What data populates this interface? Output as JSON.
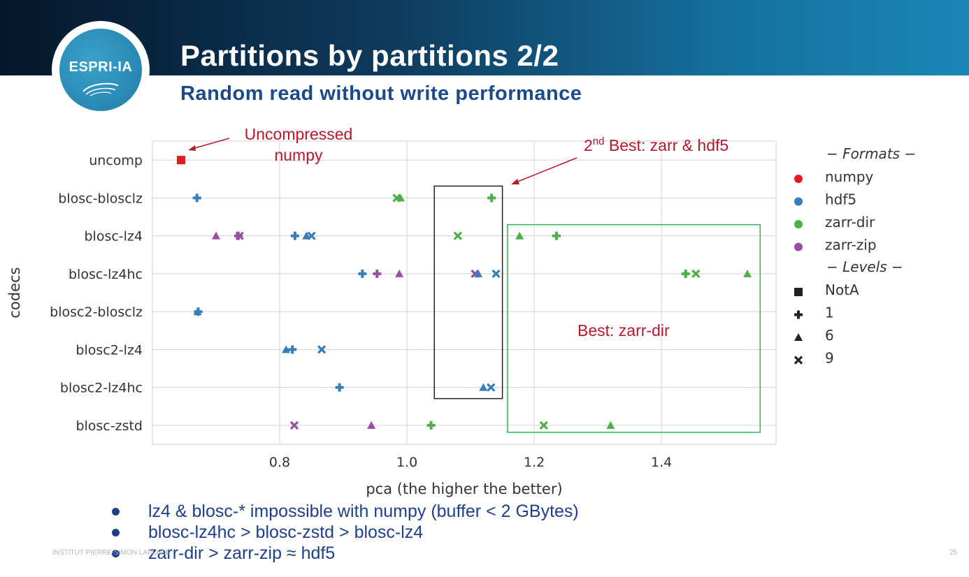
{
  "slide": {
    "title": "Partitions by partitions 2/2",
    "subtitle": "Random read without write performance",
    "logo_text": "ESPRI-IA",
    "footer_left": "INSTITUT PIERRE-SIMON LAPLACE",
    "page_number": "25"
  },
  "colors": {
    "numpy": "#e41a1c",
    "hdf5": "#377eb8",
    "zarr-dir": "#4daf4a",
    "zarr-zip": "#984ea3",
    "annotation": "#b5192b",
    "best_box": "#2db84a",
    "second_box": "#222222"
  },
  "annotations": {
    "uncompressed": "Uncompressed\nnumpy",
    "second_best_pre": "2",
    "second_best_sup": "nd",
    "second_best_post": " Best: zarr & hdf5",
    "best": "Best: zarr-dir"
  },
  "chart_data": {
    "type": "scatter",
    "xlabel": "pca (the higher the better)",
    "ylabel": "codecs",
    "xlim": [
      0.6,
      1.58
    ],
    "xticks": [
      0.8,
      1.0,
      1.2,
      1.4
    ],
    "xtick_labels": [
      "0.8",
      "1.0",
      "1.2",
      "1.4"
    ],
    "categories": [
      "uncomp",
      "blosc-blosclz",
      "blosc-lz4",
      "blosc-lz4hc",
      "blosc2-blosclz",
      "blosc2-lz4",
      "blosc2-lz4hc",
      "blosc-zstd"
    ],
    "grid": true,
    "legend_placement": "right, outside",
    "legend": {
      "formats_title": "− Formats −",
      "formats": [
        "numpy",
        "hdf5",
        "zarr-dir",
        "zarr-zip"
      ],
      "levels_title": "− Levels −",
      "levels": [
        {
          "label": "NotA",
          "marker": "square"
        },
        {
          "label": "1",
          "marker": "plus"
        },
        {
          "label": "6",
          "marker": "triangle"
        },
        {
          "label": "9",
          "marker": "x"
        }
      ]
    },
    "points": [
      {
        "codec": "uncomp",
        "format": "numpy",
        "level": "NotA",
        "x": 0.645
      },
      {
        "codec": "blosc-blosclz",
        "format": "hdf5",
        "level": "1",
        "x": 0.67
      },
      {
        "codec": "blosc-blosclz",
        "format": "zarr-dir",
        "level": "9",
        "x": 0.984
      },
      {
        "codec": "blosc-blosclz",
        "format": "zarr-dir",
        "level": "6",
        "x": 0.99
      },
      {
        "codec": "blosc-blosclz",
        "format": "zarr-dir",
        "level": "1",
        "x": 1.133
      },
      {
        "codec": "blosc-lz4",
        "format": "zarr-zip",
        "level": "6",
        "x": 0.7
      },
      {
        "codec": "blosc-lz4",
        "format": "zarr-zip",
        "level": "1",
        "x": 0.735
      },
      {
        "codec": "blosc-lz4",
        "format": "zarr-zip",
        "level": "9",
        "x": 0.737
      },
      {
        "codec": "blosc-lz4",
        "format": "hdf5",
        "level": "1",
        "x": 0.824
      },
      {
        "codec": "blosc-lz4",
        "format": "hdf5",
        "level": "6",
        "x": 0.842
      },
      {
        "codec": "blosc-lz4",
        "format": "hdf5",
        "level": "9",
        "x": 0.85
      },
      {
        "codec": "blosc-lz4",
        "format": "zarr-dir",
        "level": "9",
        "x": 1.08
      },
      {
        "codec": "blosc-lz4",
        "format": "zarr-dir",
        "level": "6",
        "x": 1.177
      },
      {
        "codec": "blosc-lz4",
        "format": "zarr-dir",
        "level": "1",
        "x": 1.235
      },
      {
        "codec": "blosc-lz4hc",
        "format": "hdf5",
        "level": "1",
        "x": 0.93
      },
      {
        "codec": "blosc-lz4hc",
        "format": "zarr-zip",
        "level": "1",
        "x": 0.953
      },
      {
        "codec": "blosc-lz4hc",
        "format": "zarr-zip",
        "level": "6",
        "x": 0.988
      },
      {
        "codec": "blosc-lz4hc",
        "format": "zarr-zip",
        "level": "9",
        "x": 1.107
      },
      {
        "codec": "blosc-lz4hc",
        "format": "hdf5",
        "level": "6",
        "x": 1.112
      },
      {
        "codec": "blosc-lz4hc",
        "format": "hdf5",
        "level": "9",
        "x": 1.14
      },
      {
        "codec": "blosc-lz4hc",
        "format": "zarr-dir",
        "level": "1",
        "x": 1.438
      },
      {
        "codec": "blosc-lz4hc",
        "format": "zarr-dir",
        "level": "9",
        "x": 1.454
      },
      {
        "codec": "blosc-lz4hc",
        "format": "zarr-dir",
        "level": "6",
        "x": 1.535
      },
      {
        "codec": "blosc2-blosclz",
        "format": "hdf5",
        "level": "6",
        "x": 0.671
      },
      {
        "codec": "blosc2-blosclz",
        "format": "hdf5",
        "level": "1",
        "x": 0.672
      },
      {
        "codec": "blosc2-lz4",
        "format": "hdf5",
        "level": "6",
        "x": 0.81
      },
      {
        "codec": "blosc2-lz4",
        "format": "hdf5",
        "level": "1",
        "x": 0.82
      },
      {
        "codec": "blosc2-lz4",
        "format": "hdf5",
        "level": "9",
        "x": 0.866
      },
      {
        "codec": "blosc2-lz4hc",
        "format": "hdf5",
        "level": "1",
        "x": 0.894
      },
      {
        "codec": "blosc2-lz4hc",
        "format": "hdf5",
        "level": "6",
        "x": 1.12
      },
      {
        "codec": "blosc2-lz4hc",
        "format": "hdf5",
        "level": "9",
        "x": 1.132
      },
      {
        "codec": "blosc-zstd",
        "format": "zarr-zip",
        "level": "9",
        "x": 0.823
      },
      {
        "codec": "blosc-zstd",
        "format": "zarr-zip",
        "level": "6",
        "x": 0.944
      },
      {
        "codec": "blosc-zstd",
        "format": "zarr-dir",
        "level": "1",
        "x": 1.038
      },
      {
        "codec": "blosc-zstd",
        "format": "zarr-dir",
        "level": "9",
        "x": 1.215
      },
      {
        "codec": "blosc-zstd",
        "format": "zarr-dir",
        "level": "6",
        "x": 1.32
      }
    ]
  },
  "bullets": [
    "lz4 & blosc-* impossible with numpy (buffer < 2 GBytes)",
    "blosc-lz4hc > blosc-zstd > blosc-lz4",
    "zarr-dir > zarr-zip ≈ hdf5"
  ]
}
